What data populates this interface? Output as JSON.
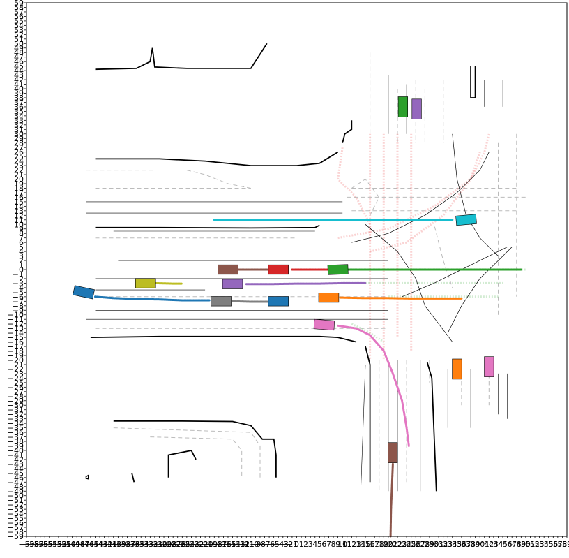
{
  "plot": {
    "x_range": [
      -59,
      59
    ],
    "y_range": [
      -59,
      59
    ],
    "tick_step": 1,
    "frame_color": "#000000",
    "background": "#ffffff"
  },
  "palette": {
    "boundary": "#000000",
    "lane_divider": "#000000",
    "lane_dashed": "#bbbbbb",
    "route_red": "#f08080",
    "route_green": "#90d090"
  },
  "agents": [
    {
      "id": "agent-blue-west",
      "color": "#1f77b4",
      "x": -46.5,
      "y": -5,
      "angle": -12,
      "traj": [
        [
          -44,
          -6
        ],
        [
          -40,
          -6.3
        ],
        [
          -35,
          -6.5
        ],
        [
          -30,
          -6.6
        ],
        [
          -25,
          -6.8
        ],
        [
          -19,
          -6.8
        ]
      ]
    },
    {
      "id": "agent-olive",
      "color": "#bcbd22",
      "x": -33,
      "y": -3,
      "angle": 0,
      "traj": [
        [
          -31,
          -3
        ],
        [
          -27,
          -3.1
        ],
        [
          -25,
          -3.1
        ]
      ]
    },
    {
      "id": "agent-gray",
      "color": "#7f7f7f",
      "x": -16.5,
      "y": -7,
      "angle": 0,
      "traj": [
        [
          -14,
          -7
        ],
        [
          -10,
          -7.1
        ],
        [
          -5,
          -7.1
        ]
      ]
    },
    {
      "id": "agent-blue-mid",
      "color": "#1f77b4",
      "x": -4,
      "y": -7,
      "angle": 0,
      "traj": []
    },
    {
      "id": "agent-purple-west",
      "color": "#9467bd",
      "x": -14,
      "y": -3.2,
      "angle": 0,
      "traj": [
        [
          -11,
          -3.2
        ],
        [
          -5,
          -3.2
        ],
        [
          0,
          -3.1
        ],
        [
          5,
          -3.1
        ],
        [
          10,
          -3.0
        ],
        [
          15,
          -3.0
        ]
      ]
    },
    {
      "id": "agent-brown-west",
      "color": "#8c564b",
      "x": -15,
      "y": 0,
      "angle": 0,
      "traj": [
        [
          -13,
          0
        ],
        [
          -10,
          0
        ],
        [
          -6,
          0
        ]
      ]
    },
    {
      "id": "agent-red",
      "color": "#d62728",
      "x": -4,
      "y": 0,
      "angle": 0,
      "traj": [
        [
          -1,
          0
        ],
        [
          3,
          0
        ],
        [
          7,
          0
        ]
      ]
    },
    {
      "id": "agent-green-center",
      "color": "#2ca02c",
      "x": 9,
      "y": 0,
      "angle": 2,
      "traj": [
        [
          11,
          0
        ],
        [
          18,
          0
        ],
        [
          25,
          0
        ],
        [
          33,
          0
        ],
        [
          40,
          0
        ],
        [
          46,
          0
        ],
        [
          49,
          0
        ]
      ]
    },
    {
      "id": "agent-orange-center",
      "color": "#ff7f0e",
      "x": 7,
      "y": -6.2,
      "angle": 0,
      "traj": [
        [
          9.5,
          -6.2
        ],
        [
          15,
          -6.3
        ],
        [
          20,
          -6.3
        ],
        [
          25,
          -6.4
        ],
        [
          30,
          -6.4
        ],
        [
          36,
          -6.4
        ]
      ]
    },
    {
      "id": "agent-pink-center",
      "color": "#e377c2",
      "x": 6,
      "y": -12.2,
      "angle": -4,
      "traj": [
        [
          9,
          -12.4
        ],
        [
          13,
          -13
        ],
        [
          16,
          -14.5
        ],
        [
          19,
          -18
        ],
        [
          21,
          -23
        ],
        [
          23,
          -29
        ],
        [
          24,
          -35
        ],
        [
          24.5,
          -39
        ]
      ]
    },
    {
      "id": "agent-cyan",
      "color": "#17becf",
      "x": 37,
      "y": 11,
      "angle": 5,
      "traj": [
        [
          34,
          11
        ],
        [
          28,
          11
        ],
        [
          20,
          11
        ],
        [
          10,
          11
        ],
        [
          0,
          11
        ],
        [
          -10,
          11
        ],
        [
          -18,
          11
        ]
      ]
    },
    {
      "id": "agent-green-north",
      "color": "#2ca02c",
      "x": 23.2,
      "y": 36,
      "angle": 90,
      "traj": []
    },
    {
      "id": "agent-purple-north",
      "color": "#9467bd",
      "x": 26.2,
      "y": 35.5,
      "angle": 90,
      "traj": []
    },
    {
      "id": "agent-orange-south",
      "color": "#ff7f0e",
      "x": 35,
      "y": -22,
      "angle": 90,
      "traj": []
    },
    {
      "id": "agent-pink-south",
      "color": "#e377c2",
      "x": 42,
      "y": -21.5,
      "angle": 90,
      "traj": []
    },
    {
      "id": "agent-brown-south",
      "color": "#8c564b",
      "x": 21,
      "y": -40.5,
      "angle": 90,
      "traj": [
        [
          21,
          -43
        ],
        [
          20.8,
          -48
        ],
        [
          20.6,
          -53
        ],
        [
          20.5,
          -59
        ]
      ]
    }
  ]
}
